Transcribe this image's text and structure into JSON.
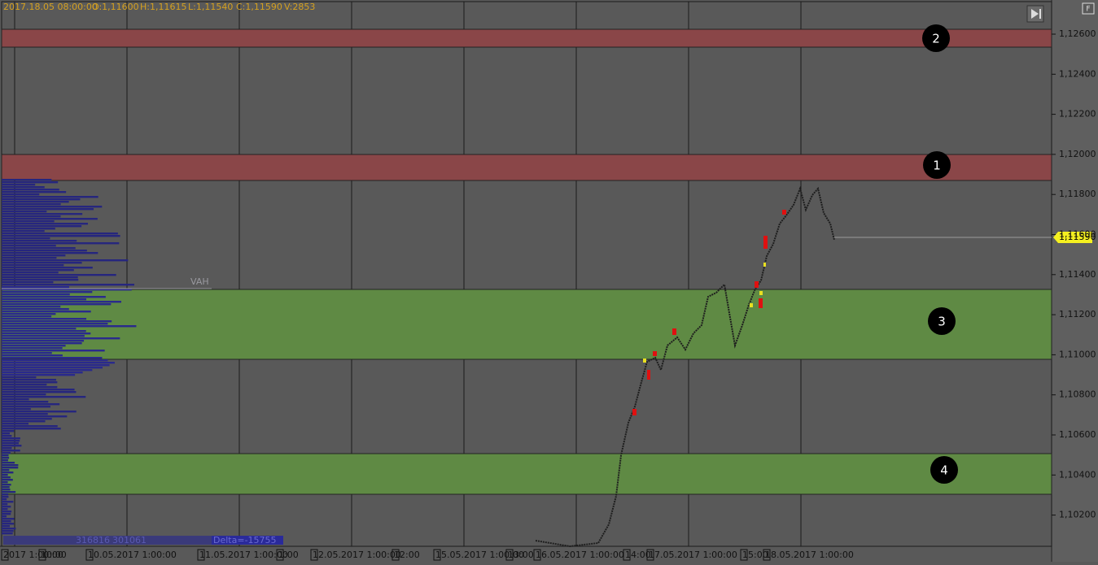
{
  "header": {
    "datetime": "2017.18.05 08:00:00",
    "open": "O:1,11600",
    "high": "H:1,11615",
    "low": "L:1,11540",
    "close": "C:1,11590",
    "volume": "V:2853"
  },
  "price_axis": {
    "ticks": [
      "1,12600",
      "1,12400",
      "1,12200",
      "1,12000",
      "1,11800",
      "1,11600",
      "1,11400",
      "1,11200",
      "1,11000",
      "1,10800",
      "1,10600",
      "1,10400",
      "1,10200"
    ]
  },
  "current_price": "1,11590",
  "zones": [
    {
      "label": "2"
    },
    {
      "label": "1"
    },
    {
      "label": "3"
    },
    {
      "label": "4"
    }
  ],
  "profile": {
    "vah": "VAH",
    "buy": "316816",
    "sell": "301061",
    "delta": "Delta=-15755"
  },
  "time_axis": {
    "labels": [
      "2017 1:00:00",
      "10:00",
      "10.05.2017 1:00:00",
      "11.05.2017 1:00:00",
      "1:00",
      "12.05.2017 1:00:00",
      "12:00",
      "15.05.2017 1:00:00",
      "13:00",
      "16.05.2017 1:00:00",
      "14:00",
      "17.05.2017 1:00:00",
      "15:00",
      "18.05.2017 1:00:00"
    ]
  },
  "controls": {
    "fullscreen": "F"
  }
}
